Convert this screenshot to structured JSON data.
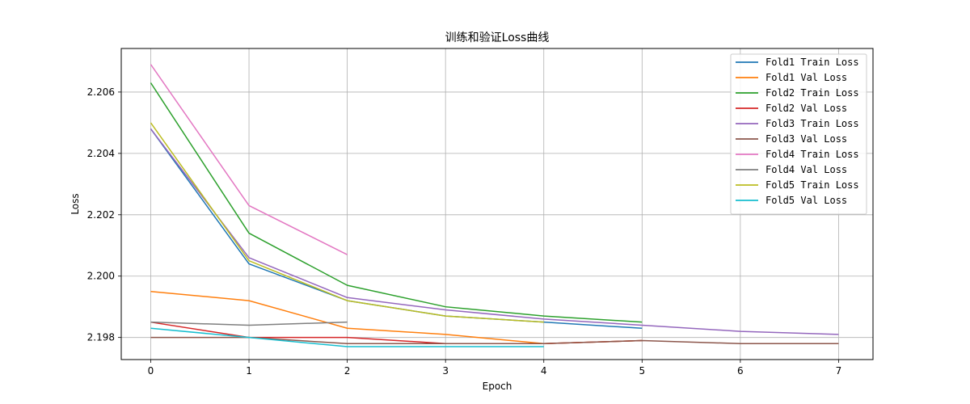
{
  "chart_data": {
    "type": "line",
    "title": "训练和验证Loss曲线",
    "xlabel": "Epoch",
    "ylabel": "Loss",
    "xlim": [
      -0.3,
      7.35
    ],
    "ylim": [
      2.19728,
      2.20742
    ],
    "xticks": [
      0,
      1,
      2,
      3,
      4,
      5,
      6,
      7
    ],
    "yticks": [
      2.198,
      2.2,
      2.202,
      2.204,
      2.206
    ],
    "ytick_labels": [
      "2.198",
      "2.200",
      "2.202",
      "2.204",
      "2.206"
    ],
    "grid": true,
    "legend_position": "top-right",
    "series": [
      {
        "name": "Fold1 Train Loss",
        "color": "#1f77b4",
        "x": [
          0,
          1,
          2,
          3,
          4,
          5
        ],
        "values": [
          2.2048,
          2.2004,
          2.1992,
          2.1987,
          2.1985,
          2.1983
        ]
      },
      {
        "name": "Fold1 Val Loss",
        "color": "#ff7f0e",
        "x": [
          0,
          1,
          2,
          3,
          4,
          5
        ],
        "values": [
          2.1995,
          2.1992,
          2.1983,
          2.1981,
          2.1978,
          2.1979
        ]
      },
      {
        "name": "Fold2 Train Loss",
        "color": "#2ca02c",
        "x": [
          0,
          1,
          2,
          3,
          4,
          5
        ],
        "values": [
          2.2063,
          2.2014,
          2.1997,
          2.199,
          2.1987,
          2.1985
        ]
      },
      {
        "name": "Fold2 Val Loss",
        "color": "#d62728",
        "x": [
          0,
          1,
          2,
          3,
          4,
          5
        ],
        "values": [
          2.1985,
          2.198,
          2.198,
          2.1978,
          2.1978,
          2.1979
        ]
      },
      {
        "name": "Fold3 Train Loss",
        "color": "#9467bd",
        "x": [
          0,
          1,
          2,
          3,
          4,
          5,
          6,
          7
        ],
        "values": [
          2.2048,
          2.2006,
          2.1993,
          2.1989,
          2.1986,
          2.1984,
          2.1982,
          2.1981
        ]
      },
      {
        "name": "Fold3 Val Loss",
        "color": "#8c564b",
        "x": [
          0,
          1,
          2,
          3,
          4,
          5,
          6,
          7
        ],
        "values": [
          2.198,
          2.198,
          2.1978,
          2.1978,
          2.1978,
          2.1979,
          2.1978,
          2.1978
        ]
      },
      {
        "name": "Fold4 Train Loss",
        "color": "#e377c2",
        "x": [
          0,
          1,
          2
        ],
        "values": [
          2.2069,
          2.2023,
          2.2007
        ]
      },
      {
        "name": "Fold4 Val Loss",
        "color": "#7f7f7f",
        "x": [
          0,
          1,
          2
        ],
        "values": [
          2.1985,
          2.1984,
          2.1985
        ]
      },
      {
        "name": "Fold5 Train Loss",
        "color": "#bcbd22",
        "x": [
          0,
          1,
          2,
          3,
          4
        ],
        "values": [
          2.205,
          2.2005,
          2.1992,
          2.1987,
          2.1985
        ]
      },
      {
        "name": "Fold5 Val Loss",
        "color": "#17becf",
        "x": [
          0,
          1,
          2,
          3,
          4
        ],
        "values": [
          2.1983,
          2.198,
          2.1977,
          2.1977,
          2.1977
        ]
      }
    ]
  }
}
